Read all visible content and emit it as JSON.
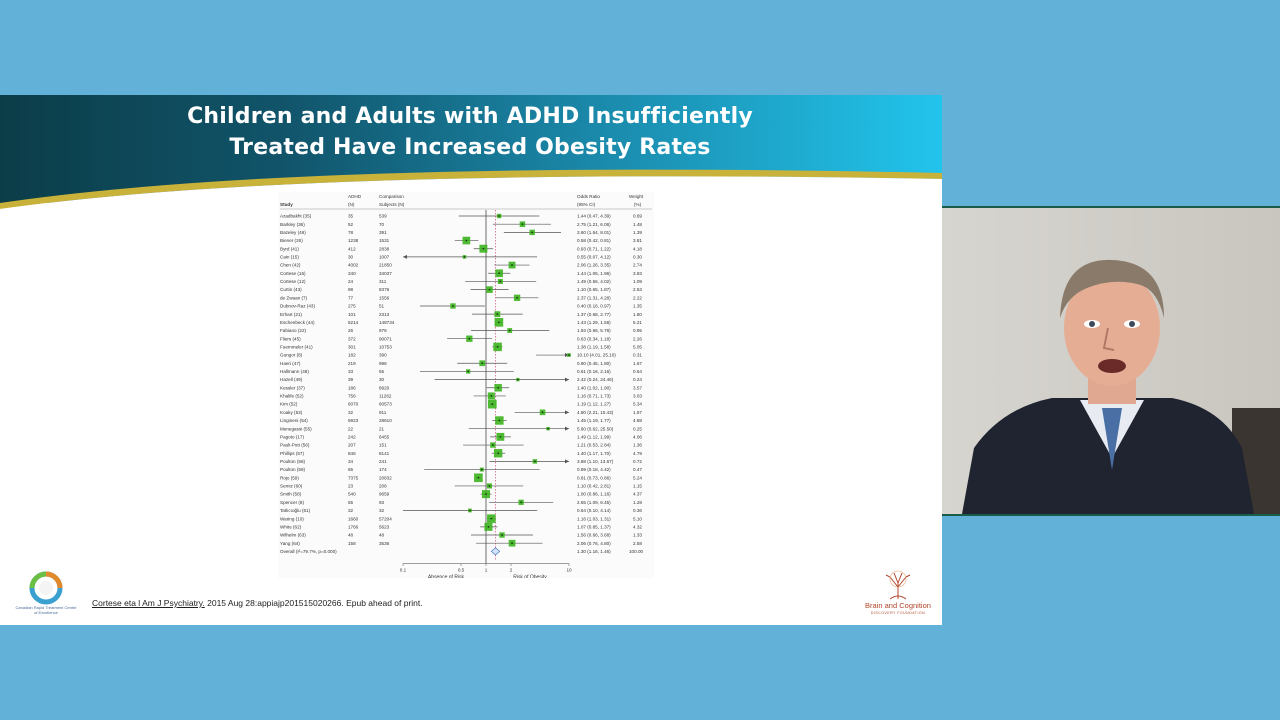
{
  "slide": {
    "title_line1": "Children and Adults with ADHD Insufficiently",
    "title_line2": "Treated Have Increased Obesity Rates",
    "citation_link": "Cortese eta l Am J Psychiatry.",
    "citation_rest": " 2015 Aug 28:appiajp201515020266. Epub ahead of print.",
    "logo_left_text": "Canadian Rapid Treatment Centre of Excellence",
    "logo_right_text": "Brain and Cognition",
    "logo_right_sub": "DISCOVERY FOUNDATION"
  },
  "forest_plot": {
    "headers": {
      "study": "Study",
      "adhd": "ADHD",
      "adhd_sub": "(N)",
      "comparison": "Comparison",
      "comparison_sub": "Subjects (N)",
      "or": "Odds Ratio",
      "or_sub": "(95% CI)",
      "weight": "Weight",
      "weight_sub": "(%)"
    },
    "axis_ticks": [
      "0.1",
      "0.5",
      "1",
      "2",
      "10"
    ],
    "axis_left_label": "Absence of Risk",
    "axis_right_label": "Risk of Obesity"
  },
  "chart_data": {
    "type": "forest",
    "columns": [
      "Study",
      "ADHD (N)",
      "Comparison Subjects (N)",
      "Odds Ratio (95% CI)",
      "Weight (%)"
    ],
    "xscale": "log",
    "xlim": [
      0.1,
      10
    ],
    "xticks": [
      0.1,
      0.5,
      1,
      2,
      10
    ],
    "reference_line": 1,
    "rows": [
      {
        "study": "Azadbakht (35)",
        "adhd": "35",
        "comp": "539",
        "or": 1.44,
        "lo": 0.47,
        "hi": 4.39,
        "ci": "1.44 (0.47, 4.39)",
        "weight": "0.69"
      },
      {
        "study": "Barkley (36)",
        "adhd": "52",
        "comp": "70",
        "or": 2.75,
        "lo": 1.21,
        "hi": 6.06,
        "ci": "2.75 (1.21, 6.06)",
        "weight": "1.48"
      },
      {
        "study": "Bazeley (46)",
        "adhd": "78",
        "comp": "391",
        "or": 3.6,
        "lo": 1.64,
        "hi": 8.01,
        "ci": "3.60 (1.64, 8.01)",
        "weight": "1.39"
      },
      {
        "study": "Biener (26)",
        "adhd": "1238",
        "comp": "1531",
        "or": 0.58,
        "lo": 0.42,
        "hi": 0.81,
        "ci": "0.58 (0.42, 0.81)",
        "weight": "3.81"
      },
      {
        "study": "Byrd (41)",
        "adhd": "412",
        "comp": "2838",
        "or": 0.93,
        "lo": 0.71,
        "hi": 1.22,
        "ci": "0.93 (0.71, 1.22)",
        "weight": "4.18"
      },
      {
        "study": "Cain (15)",
        "adhd": "30",
        "comp": "1007",
        "or": 0.55,
        "lo": 0.07,
        "hi": 4.12,
        "ci": "0.55 (0.07, 4.12)",
        "weight": "0.30"
      },
      {
        "study": "Chen (42)",
        "adhd": "4002",
        "comp": "21850",
        "or": 2.06,
        "lo": 1.26,
        "hi": 3.35,
        "ci": "2.06 (1.26, 3.35)",
        "weight": "2.74"
      },
      {
        "study": "Cortese (16)",
        "adhd": "340",
        "comp": "34037",
        "or": 1.44,
        "lo": 1.06,
        "hi": 1.96,
        "ci": "1.44 (1.06, 1.96)",
        "weight": "3.83"
      },
      {
        "study": "Cortese (12)",
        "adhd": "24",
        "comp": "311",
        "or": 1.49,
        "lo": 0.56,
        "hi": 4.02,
        "ci": "1.49 (0.56, 4.02)",
        "weight": "1.09"
      },
      {
        "study": "Curtin (43)",
        "adhd": "98",
        "comp": "8376",
        "or": 1.1,
        "lo": 0.65,
        "hi": 1.87,
        "ci": "1.10 (0.65, 1.87)",
        "weight": "2.53"
      },
      {
        "study": "de Zwaan (7)",
        "adhd": "77",
        "comp": "1556",
        "or": 2.37,
        "lo": 1.31,
        "hi": 4.28,
        "ci": "2.37 (1.31, 4.28)",
        "weight": "2.22"
      },
      {
        "study": "Dubnov-Raz (43)",
        "adhd": "275",
        "comp": "51",
        "or": 0.4,
        "lo": 0.16,
        "hi": 0.97,
        "ci": "0.40 (0.16, 0.97)",
        "weight": "1.35"
      },
      {
        "study": "Erhart (21)",
        "adhd": "101",
        "comp": "2313",
        "or": 1.37,
        "lo": 0.68,
        "hi": 2.77,
        "ci": "1.37 (0.68, 2.77)",
        "weight": "1.80"
      },
      {
        "study": "Eschenbeck (44)",
        "adhd": "5214",
        "comp": "148734",
        "or": 1.43,
        "lo": 1.29,
        "hi": 1.58,
        "ci": "1.43 (1.29, 1.58)",
        "weight": "5.21"
      },
      {
        "study": "Fabiano (22)",
        "adhd": "26",
        "comp": "976",
        "or": 1.93,
        "lo": 0.66,
        "hi": 5.78,
        "ci": "1.93 (0.66, 5.78)",
        "weight": "0.95"
      },
      {
        "study": "Fliers (45)",
        "adhd": "372",
        "comp": "90071",
        "or": 0.63,
        "lo": 0.34,
        "hi": 1.18,
        "ci": "0.63 (0.34, 1.18)",
        "weight": "2.26"
      },
      {
        "study": "Fuemmeler (41)",
        "adhd": "301",
        "comp": "10753",
        "or": 1.38,
        "lo": 1.19,
        "hi": 1.58,
        "ci": "1.38 (1.19, 1.58)",
        "weight": "5.05"
      },
      {
        "study": "Gungor (8)",
        "adhd": "182",
        "comp": "390",
        "or": 10.1,
        "lo": 4.01,
        "hi": 25.1,
        "ci": "10.10 (4.01, 25.10)",
        "weight": "0.31"
      },
      {
        "study": "Haeri (47)",
        "adhd": "219",
        "comp": "996",
        "or": 0.9,
        "lo": 0.45,
        "hi": 1.8,
        "ci": "0.90 (0.45, 1.80)",
        "weight": "1.67"
      },
      {
        "study": "Hallmann (48)",
        "adhd": "33",
        "comp": "55",
        "or": 0.61,
        "lo": 0.16,
        "hi": 2.16,
        "ci": "0.61 (0.16, 2.16)",
        "weight": "0.64"
      },
      {
        "study": "Hazell (49)",
        "adhd": "39",
        "comp": "30",
        "or": 2.42,
        "lo": 0.24,
        "hi": 24.46,
        "ci": "2.42 (0.24, 24.46)",
        "weight": "0.24"
      },
      {
        "study": "Kessler (37)",
        "adhd": "186",
        "comp": "8920",
        "or": 1.4,
        "lo": 1.02,
        "hi": 1.9,
        "ci": "1.40 (1.02, 1.90)",
        "weight": "3.57"
      },
      {
        "study": "Khalife (52)",
        "adhd": "756",
        "comp": "11262",
        "or": 1.16,
        "lo": 0.71,
        "hi": 1.73,
        "ci": "1.16 (0.71, 1.73)",
        "weight": "3.03"
      },
      {
        "study": "Kim (52)",
        "adhd": "6070",
        "comp": "60573",
        "or": 1.19,
        "lo": 1.12,
        "hi": 1.27,
        "ci": "1.19 (1.12, 1.27)",
        "weight": "5.34"
      },
      {
        "study": "Koaky (53)",
        "adhd": "32",
        "comp": "911",
        "or": 4.8,
        "lo": 2.21,
        "hi": 10.43,
        "ci": "4.80 (2.21, 10.43)",
        "weight": "1.57"
      },
      {
        "study": "Lingineni (54)",
        "adhd": "5923",
        "comp": "28610",
        "or": 1.45,
        "lo": 1.19,
        "hi": 1.77,
        "ci": "1.45 (1.19, 1.77)",
        "weight": "4.88"
      },
      {
        "study": "Menegassi (55)",
        "adhd": "22",
        "comp": "21",
        "or": 5.6,
        "lo": 0.62,
        "hi": 25.5,
        "ci": "5.60 (0.62, 25.50)",
        "weight": "0.25"
      },
      {
        "study": "Pagoto (17)",
        "adhd": "242",
        "comp": "6455",
        "or": 1.49,
        "lo": 1.12,
        "hi": 1.99,
        "ci": "1.49 (1.12, 1.99)",
        "weight": "4.06"
      },
      {
        "study": "Pauli-Pott (56)",
        "adhd": "207",
        "comp": "151",
        "or": 1.21,
        "lo": 0.53,
        "hi": 2.84,
        "ci": "1.21 (0.53, 2.84)",
        "weight": "1.36"
      },
      {
        "study": "Phillips (57)",
        "adhd": "846",
        "comp": "8141",
        "or": 1.4,
        "lo": 1.17,
        "hi": 1.7,
        "ci": "1.40 (1.17, 1.70)",
        "weight": "4.79"
      },
      {
        "study": "Poulton (58)",
        "adhd": "34",
        "comp": "241",
        "or": 3.88,
        "lo": 1.1,
        "hi": 13.67,
        "ci": "3.88 (1.10, 13.67)",
        "weight": "0.72"
      },
      {
        "study": "Poulton (59)",
        "adhd": "65",
        "comp": "174",
        "or": 0.89,
        "lo": 0.18,
        "hi": 4.42,
        "ci": "0.89 (0.18, 4.42)",
        "weight": "0.47"
      },
      {
        "study": "Rojo (59)",
        "adhd": "7375",
        "comp": "20832",
        "or": 0.81,
        "lo": 0.73,
        "hi": 0.86,
        "ci": "0.81 (0.73, 0.86)",
        "weight": "5.24"
      },
      {
        "study": "Semiz (60)",
        "adhd": "23",
        "comp": "208",
        "or": 1.1,
        "lo": 0.42,
        "hi": 2.81,
        "ci": "1.10 (0.42, 2.81)",
        "weight": "1.15"
      },
      {
        "study": "Smith (58)",
        "adhd": "540",
        "comp": "9659",
        "or": 1.0,
        "lo": 0.86,
        "hi": 1.16,
        "ci": "1.00 (0.86, 1.16)",
        "weight": "4.37"
      },
      {
        "study": "Spencer (8)",
        "adhd": "55",
        "comp": "93",
        "or": 2.65,
        "lo": 1.09,
        "hi": 6.45,
        "ci": "2.65 (1.09, 6.45)",
        "weight": "1.28"
      },
      {
        "study": "Tatlıcıoğlu (61)",
        "adhd": "32",
        "comp": "32",
        "or": 0.64,
        "lo": 0.1,
        "hi": 4.14,
        "ci": "0.64 (0.10, 4.14)",
        "weight": "0.36"
      },
      {
        "study": "Waring (10)",
        "adhd": "1660",
        "comp": "57204",
        "or": 1.16,
        "lo": 1.03,
        "hi": 1.31,
        "ci": "1.16 (1.03, 1.31)",
        "weight": "5.10"
      },
      {
        "study": "White (62)",
        "adhd": "1766",
        "comp": "5623",
        "or": 1.07,
        "lo": 0.85,
        "hi": 1.37,
        "ci": "1.07 (0.85, 1.37)",
        "weight": "4.32"
      },
      {
        "study": "Wilhelm (63)",
        "adhd": "48",
        "comp": "48",
        "or": 1.56,
        "lo": 0.66,
        "hi": 3.68,
        "ci": "1.56 (0.66, 3.68)",
        "weight": "1.33"
      },
      {
        "study": "Yang (64)",
        "adhd": "158",
        "comp": "3536",
        "or": 2.06,
        "lo": 0.76,
        "hi": 4.8,
        "ci": "2.06 (0.76, 4.80)",
        "weight": "2.58"
      }
    ],
    "overall": {
      "label": "Overall (I²=79.7%, p=0.000)",
      "or": 1.3,
      "lo": 1.16,
      "hi": 1.46,
      "ci": "1.30 (1.16, 1.46)",
      "weight": "100.00"
    },
    "colors": {
      "box": "#3cb41e",
      "ci_line": "#555555",
      "reference": "#333333",
      "summary_line": "#cc3366",
      "diamond": "#4a78c8"
    }
  },
  "webcam": {
    "description_icon": "presenter-video-icon"
  }
}
